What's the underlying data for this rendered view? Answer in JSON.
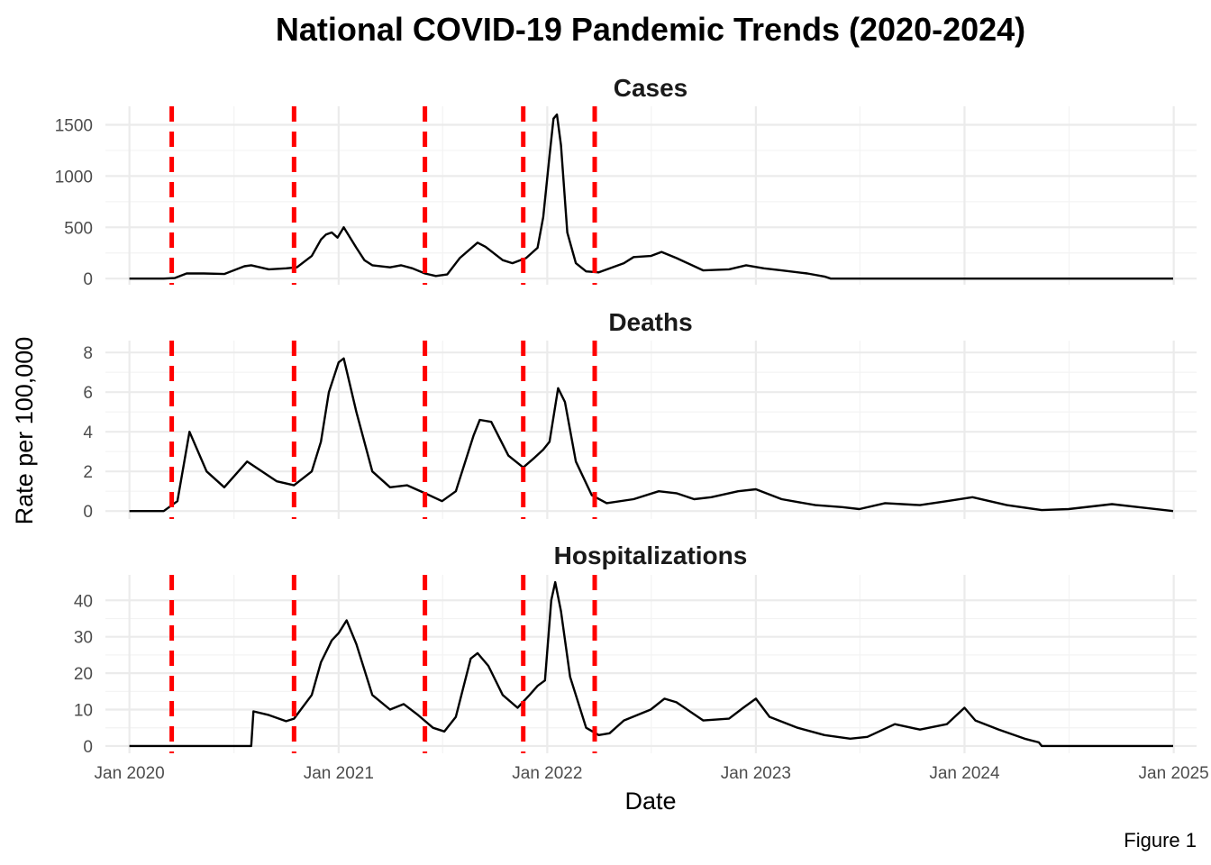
{
  "chart_data": {
    "type": "line",
    "title": "National COVID-19 Pandemic Trends (2020-2024)",
    "xlabel": "Date",
    "ylabel": "Rate per 100,000",
    "caption": "Figure 1",
    "x_range": [
      "2019-11-20",
      "2025-02-10"
    ],
    "x_ticks": [
      {
        "date": "2020-01-01",
        "label": "Jan 2020"
      },
      {
        "date": "2021-01-01",
        "label": "Jan 2021"
      },
      {
        "date": "2022-01-01",
        "label": "Jan 2022"
      },
      {
        "date": "2023-01-01",
        "label": "Jan 2023"
      },
      {
        "date": "2024-01-01",
        "label": "Jan 2024"
      },
      {
        "date": "2025-01-01",
        "label": "Jan 2025"
      }
    ],
    "event_dates": [
      "2020-03-15",
      "2020-10-15",
      "2021-06-01",
      "2021-11-20",
      "2022-03-25"
    ],
    "event_line_color": "#ff0000",
    "series_color": "#000000",
    "grid": true,
    "panels": [
      {
        "title": "Cases",
        "ylim": [
          -60,
          1680
        ],
        "y_ticks": [
          0,
          500,
          1000,
          1500
        ],
        "points": [
          [
            "2020-01-01",
            0
          ],
          [
            "2020-03-01",
            0
          ],
          [
            "2020-03-20",
            5
          ],
          [
            "2020-04-10",
            50
          ],
          [
            "2020-05-10",
            50
          ],
          [
            "2020-06-15",
            45
          ],
          [
            "2020-07-20",
            120
          ],
          [
            "2020-08-01",
            130
          ],
          [
            "2020-09-01",
            90
          ],
          [
            "2020-10-01",
            100
          ],
          [
            "2020-10-20",
            110
          ],
          [
            "2020-11-15",
            220
          ],
          [
            "2020-12-01",
            380
          ],
          [
            "2020-12-10",
            430
          ],
          [
            "2020-12-20",
            450
          ],
          [
            "2020-12-30",
            400
          ],
          [
            "2021-01-10",
            500
          ],
          [
            "2021-02-01",
            300
          ],
          [
            "2021-02-15",
            180
          ],
          [
            "2021-03-01",
            130
          ],
          [
            "2021-04-01",
            110
          ],
          [
            "2021-04-20",
            130
          ],
          [
            "2021-05-10",
            100
          ],
          [
            "2021-06-01",
            50
          ],
          [
            "2021-06-20",
            25
          ],
          [
            "2021-07-10",
            40
          ],
          [
            "2021-08-01",
            200
          ],
          [
            "2021-09-01",
            350
          ],
          [
            "2021-09-15",
            310
          ],
          [
            "2021-10-15",
            180
          ],
          [
            "2021-11-01",
            150
          ],
          [
            "2021-11-25",
            200
          ],
          [
            "2021-12-15",
            300
          ],
          [
            "2021-12-25",
            600
          ],
          [
            "2022-01-05",
            1200
          ],
          [
            "2022-01-12",
            1560
          ],
          [
            "2022-01-18",
            1600
          ],
          [
            "2022-01-25",
            1300
          ],
          [
            "2022-02-05",
            450
          ],
          [
            "2022-02-20",
            150
          ],
          [
            "2022-03-10",
            70
          ],
          [
            "2022-04-01",
            60
          ],
          [
            "2022-05-15",
            150
          ],
          [
            "2022-06-01",
            210
          ],
          [
            "2022-07-01",
            220
          ],
          [
            "2022-07-20",
            260
          ],
          [
            "2022-08-15",
            200
          ],
          [
            "2022-10-01",
            80
          ],
          [
            "2022-11-15",
            90
          ],
          [
            "2022-12-15",
            130
          ],
          [
            "2023-01-15",
            100
          ],
          [
            "2023-02-15",
            80
          ],
          [
            "2023-04-01",
            50
          ],
          [
            "2023-05-01",
            20
          ],
          [
            "2023-05-12",
            0
          ],
          [
            "2024-12-31",
            0
          ]
        ]
      },
      {
        "title": "Deaths",
        "ylim": [
          -0.4,
          8.6
        ],
        "y_ticks": [
          0,
          2,
          4,
          6,
          8
        ],
        "points": [
          [
            "2020-01-01",
            0
          ],
          [
            "2020-03-01",
            0
          ],
          [
            "2020-03-25",
            0.5
          ],
          [
            "2020-04-15",
            4.0
          ],
          [
            "2020-05-15",
            2.0
          ],
          [
            "2020-06-15",
            1.2
          ],
          [
            "2020-07-25",
            2.5
          ],
          [
            "2020-08-20",
            2.0
          ],
          [
            "2020-09-15",
            1.5
          ],
          [
            "2020-10-15",
            1.3
          ],
          [
            "2020-11-15",
            2.0
          ],
          [
            "2020-12-01",
            3.5
          ],
          [
            "2020-12-15",
            6.0
          ],
          [
            "2021-01-01",
            7.5
          ],
          [
            "2021-01-10",
            7.7
          ],
          [
            "2021-02-01",
            5.0
          ],
          [
            "2021-03-01",
            2.0
          ],
          [
            "2021-04-01",
            1.2
          ],
          [
            "2021-05-01",
            1.3
          ],
          [
            "2021-06-01",
            0.9
          ],
          [
            "2021-07-01",
            0.5
          ],
          [
            "2021-07-25",
            1.0
          ],
          [
            "2021-08-25",
            3.8
          ],
          [
            "2021-09-05",
            4.6
          ],
          [
            "2021-09-25",
            4.5
          ],
          [
            "2021-10-25",
            2.8
          ],
          [
            "2021-11-20",
            2.2
          ],
          [
            "2021-12-10",
            2.7
          ],
          [
            "2021-12-25",
            3.1
          ],
          [
            "2022-01-05",
            3.5
          ],
          [
            "2022-01-20",
            6.2
          ],
          [
            "2022-02-01",
            5.5
          ],
          [
            "2022-02-20",
            2.5
          ],
          [
            "2022-03-20",
            0.8
          ],
          [
            "2022-04-15",
            0.4
          ],
          [
            "2022-06-01",
            0.6
          ],
          [
            "2022-07-15",
            1.0
          ],
          [
            "2022-08-15",
            0.9
          ],
          [
            "2022-09-15",
            0.6
          ],
          [
            "2022-10-15",
            0.7
          ],
          [
            "2022-12-01",
            1.0
          ],
          [
            "2023-01-01",
            1.1
          ],
          [
            "2023-02-15",
            0.6
          ],
          [
            "2023-04-15",
            0.3
          ],
          [
            "2023-06-01",
            0.2
          ],
          [
            "2023-07-01",
            0.1
          ],
          [
            "2023-08-15",
            0.4
          ],
          [
            "2023-10-15",
            0.3
          ],
          [
            "2023-12-01",
            0.5
          ],
          [
            "2024-01-15",
            0.7
          ],
          [
            "2024-03-15",
            0.3
          ],
          [
            "2024-05-15",
            0.05
          ],
          [
            "2024-07-01",
            0.1
          ],
          [
            "2024-09-15",
            0.35
          ],
          [
            "2024-12-31",
            0
          ]
        ]
      },
      {
        "title": "Hospitalizations",
        "ylim": [
          -2,
          47
        ],
        "y_ticks": [
          0,
          10,
          20,
          30,
          40
        ],
        "points": [
          [
            "2020-01-01",
            0
          ],
          [
            "2020-08-01",
            0
          ],
          [
            "2020-08-05",
            9.5
          ],
          [
            "2020-09-01",
            8.5
          ],
          [
            "2020-10-01",
            6.8
          ],
          [
            "2020-10-15",
            7.5
          ],
          [
            "2020-11-15",
            14.0
          ],
          [
            "2020-12-01",
            23.0
          ],
          [
            "2020-12-20",
            29.0
          ],
          [
            "2021-01-01",
            31.0
          ],
          [
            "2021-01-15",
            34.5
          ],
          [
            "2021-02-01",
            28.0
          ],
          [
            "2021-03-01",
            14.0
          ],
          [
            "2021-04-01",
            10.0
          ],
          [
            "2021-04-25",
            11.5
          ],
          [
            "2021-05-20",
            8.5
          ],
          [
            "2021-06-15",
            5.0
          ],
          [
            "2021-07-05",
            4.0
          ],
          [
            "2021-07-25",
            8.0
          ],
          [
            "2021-08-20",
            24.0
          ],
          [
            "2021-09-01",
            25.5
          ],
          [
            "2021-09-20",
            22.0
          ],
          [
            "2021-10-15",
            14.0
          ],
          [
            "2021-11-10",
            10.5
          ],
          [
            "2021-12-01",
            14.0
          ],
          [
            "2021-12-15",
            16.5
          ],
          [
            "2021-12-28",
            18.0
          ],
          [
            "2022-01-08",
            40.0
          ],
          [
            "2022-01-15",
            45.0
          ],
          [
            "2022-01-25",
            37.0
          ],
          [
            "2022-02-10",
            19.0
          ],
          [
            "2022-03-10",
            5.0
          ],
          [
            "2022-04-01",
            3.0
          ],
          [
            "2022-04-20",
            3.5
          ],
          [
            "2022-05-15",
            7.0
          ],
          [
            "2022-07-01",
            10.0
          ],
          [
            "2022-07-25",
            13.0
          ],
          [
            "2022-08-15",
            12.0
          ],
          [
            "2022-10-01",
            7.0
          ],
          [
            "2022-11-15",
            7.5
          ],
          [
            "2022-12-10",
            10.5
          ],
          [
            "2023-01-01",
            13.0
          ],
          [
            "2023-01-25",
            8.0
          ],
          [
            "2023-03-15",
            5.0
          ],
          [
            "2023-05-01",
            3.0
          ],
          [
            "2023-06-15",
            2.0
          ],
          [
            "2023-07-15",
            2.5
          ],
          [
            "2023-09-01",
            6.0
          ],
          [
            "2023-10-15",
            4.5
          ],
          [
            "2023-12-01",
            6.0
          ],
          [
            "2024-01-01",
            10.5
          ],
          [
            "2024-01-20",
            7.0
          ],
          [
            "2024-03-01",
            4.5
          ],
          [
            "2024-04-15",
            2.0
          ],
          [
            "2024-05-10",
            1.0
          ],
          [
            "2024-05-15",
            0
          ],
          [
            "2024-12-31",
            0
          ]
        ]
      }
    ]
  }
}
